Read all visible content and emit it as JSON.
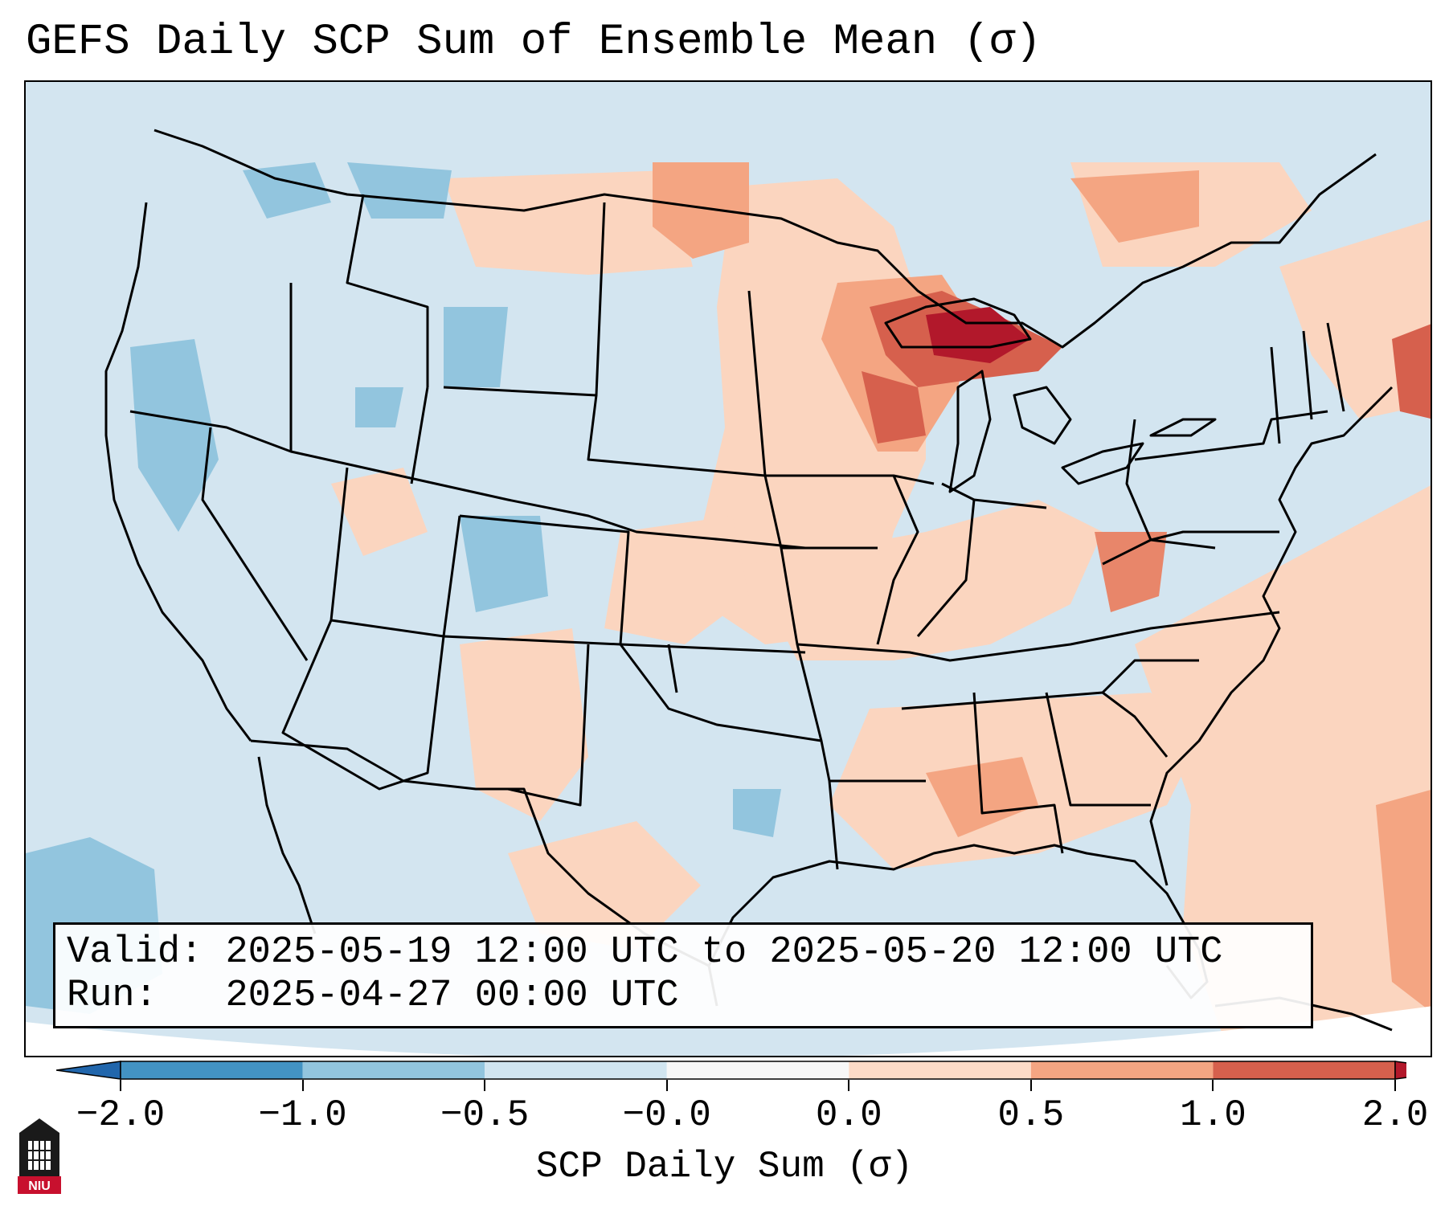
{
  "title": "GEFS Daily SCP Sum of Ensemble Mean (σ)",
  "info": {
    "valid_label": "Valid:",
    "valid_value": "2025-05-19 12:00 UTC to 2025-05-20 12:00 UTC",
    "run_label": "Run:",
    "run_value": "2025-04-27 00:00 UTC"
  },
  "colorbar": {
    "label": "SCP Daily Sum (σ)",
    "ticks": [
      "−2.0",
      "−1.0",
      "−0.5",
      "−0.0",
      "0.0",
      "0.5",
      "1.0",
      "2.0"
    ],
    "bins": [
      {
        "color": "#4393c3"
      },
      {
        "color": "#92c5de"
      },
      {
        "color": "#d1e5f0"
      },
      {
        "color": "#f7f7f7"
      },
      {
        "color": "#fddbc7"
      },
      {
        "color": "#f4a582"
      },
      {
        "color": "#d6604d"
      }
    ],
    "under_color": "#2166ac",
    "over_color": "#b2182b"
  },
  "map": {
    "region": "Contiguous United States",
    "projection": "Lambert Conformal",
    "background_color": "#d1e5f0",
    "features": [
      "coastlines",
      "state-borders",
      "country-borders"
    ]
  },
  "logo": {
    "text": "NIU"
  }
}
